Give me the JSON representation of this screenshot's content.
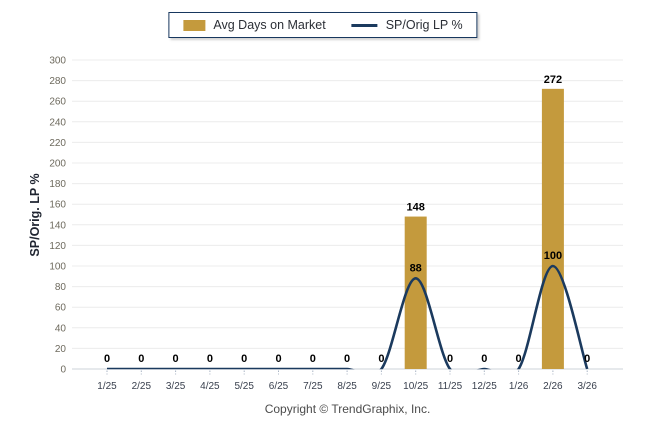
{
  "chart_data": {
    "type": "bar+line",
    "categories": [
      "1/25",
      "2/25",
      "3/25",
      "4/25",
      "5/25",
      "6/25",
      "7/25",
      "8/25",
      "9/25",
      "10/25",
      "11/25",
      "12/25",
      "1/26",
      "2/26",
      "3/26"
    ],
    "series": [
      {
        "name": "Avg Days on Market",
        "type": "bar",
        "color": "#C49A3D",
        "values": [
          0,
          0,
          0,
          0,
          0,
          0,
          0,
          0,
          0,
          148,
          0,
          0,
          0,
          272,
          0
        ]
      },
      {
        "name": "SP/Orig LP %",
        "type": "line",
        "color": "#1B3A5E",
        "values": [
          0,
          0,
          0,
          0,
          0,
          0,
          0,
          0,
          0,
          88,
          0,
          0,
          0,
          100,
          0
        ]
      }
    ],
    "title": "",
    "xlabel": "",
    "ylabel": "SP/Orig. LP %",
    "ylim": [
      0,
      300
    ],
    "ytick_step": 20,
    "grid": true,
    "legend_position": "top-center",
    "data_labels": true
  },
  "footer": {
    "text": "Copyright © TrendGraphix, Inc."
  },
  "colors": {
    "bar": "#C49A3D",
    "line": "#1B3A5E",
    "legend_border": "#17375E",
    "gridline": "#ECECEC",
    "axis_line": "#CDD3DA",
    "tick_mark": "#A9B4C4",
    "ytick_text": "#6E6A5E",
    "xtick_text": "#39404E",
    "data_label": "#000000",
    "y_title_text": "#1F2430",
    "footer_text": "#4C4C4C"
  }
}
